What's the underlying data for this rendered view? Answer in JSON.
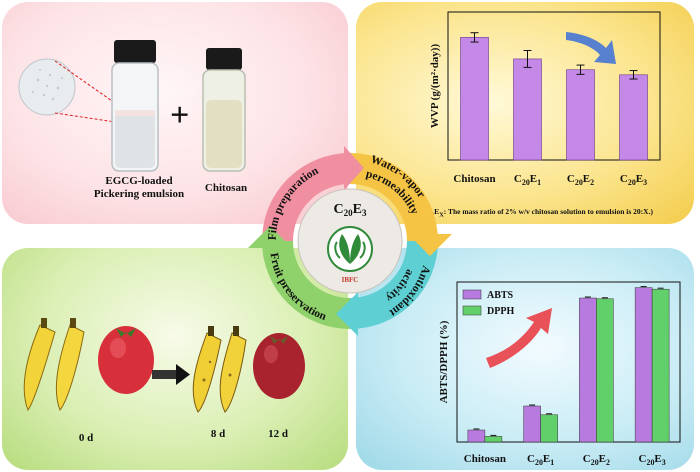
{
  "film_prep": {
    "emulsion_label_line1": "EGCG-loaded",
    "emulsion_label_line2": "Pickering emulsion",
    "chitosan_label": "Chitosan",
    "plus": "+"
  },
  "center": {
    "formula_main": "C",
    "formula_sub1": "20",
    "formula_mid": "E",
    "formula_sub2": "3",
    "logo_text": "IBFC"
  },
  "cycle": {
    "steps": [
      {
        "label": "Film preparation",
        "color": "#f08fa0"
      },
      {
        "label_line1": "Water-vapor",
        "label_line2": "permeability",
        "color": "#f6c445"
      },
      {
        "label_line1": "Antioxidant",
        "label_line2": "activity",
        "color": "#5ecfd2"
      },
      {
        "label": "Fruit preservation",
        "color": "#8fd16a"
      }
    ]
  },
  "wvp_chart": {
    "ylabel": "WVP (g/(m²·day))",
    "note": "(C20EX: The mass ratio of 2% w/v chitosan solution to emulsion is 20:X.)",
    "note_parts": [
      "(C",
      "20",
      "E",
      "X",
      ": The mass ratio of 2% w/v chitosan solution to emulsion is 20:X.)"
    ],
    "bar_color": "#c488e6",
    "arrow_color": "#3a6fd8"
  },
  "antiox_chart": {
    "ylabel": "ABTS/DPPH (%)",
    "abts_color": "#b77be0",
    "dpph_color": "#62d06a",
    "arrow_color": "#e8343a"
  },
  "fruit": {
    "days": [
      "0 d",
      "8 d",
      "12 d"
    ]
  },
  "chart_data": [
    {
      "type": "bar",
      "categories": [
        "Chitosan",
        "C20E1",
        "C20E2",
        "C20E3"
      ],
      "category_labels": [
        {
          "main": "Chitosan",
          "sub": ""
        },
        {
          "main": "C",
          "sub": "20",
          "main2": "E",
          "sub2": "1"
        },
        {
          "main": "C",
          "sub": "20",
          "main2": "E",
          "sub2": "2"
        },
        {
          "main": "C",
          "sub": "20",
          "main2": "E",
          "sub2": "3"
        }
      ],
      "values": [
        580,
        478,
        427,
        403
      ],
      "errors": [
        22,
        40,
        22,
        20
      ],
      "ylabel": "WVP (g/(m²·day))",
      "ylim": [
        0,
        700
      ]
    },
    {
      "type": "bar",
      "categories": [
        "Chitosan",
        "C20E1",
        "C20E2",
        "C20E3"
      ],
      "category_labels": [
        {
          "main": "Chitosan",
          "sub": ""
        },
        {
          "main": "C",
          "sub": "20",
          "main2": "E",
          "sub2": "1"
        },
        {
          "main": "C",
          "sub": "20",
          "main2": "E",
          "sub2": "2"
        },
        {
          "main": "C",
          "sub": "20",
          "main2": "E",
          "sub2": "3"
        }
      ],
      "series": [
        {
          "name": "ABTS",
          "values": [
            7.5,
            22.5,
            90,
            96.5
          ]
        },
        {
          "name": "DPPH",
          "values": [
            3.5,
            17,
            89.5,
            95.5
          ]
        }
      ],
      "ylabel": "ABTS/DPPH (%)",
      "ylim": [
        0,
        100
      ],
      "legend": "top-left"
    }
  ]
}
